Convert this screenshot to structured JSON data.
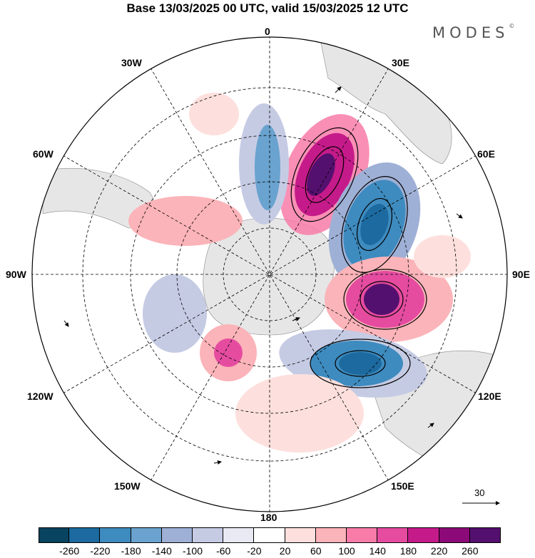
{
  "title": "Base 13/03/2025 00 UTC, valid 15/03/2025 12 UTC",
  "brand": {
    "name": "MODES",
    "mark": "©"
  },
  "map": {
    "projection": "south-polar-stereographic",
    "longitude_labels": {
      "top": "0",
      "bottom": "180",
      "left": "90W",
      "right": "90E",
      "upper_left_1": "30W",
      "upper_left_2": "60W",
      "upper_right_1": "30E",
      "upper_right_2": "60E",
      "lower_left_1": "120W",
      "lower_left_2": "150W",
      "lower_right_1": "120E",
      "lower_right_2": "150E"
    },
    "reference_vector": {
      "label": "30",
      "icon": "arrow-right-icon"
    },
    "colors": {
      "land": "#e6e6e6",
      "ocean": "#ffffff",
      "positive_ramp": [
        "#fde0dd",
        "#fbb4b9",
        "#f87ba8",
        "#e54ca0",
        "#c51b8a",
        "#8c0978",
        "#54106e"
      ],
      "negative_ramp": [
        "#e9e9f4",
        "#c6cbe4",
        "#9fb0d6",
        "#6aa3cf",
        "#3e8bbf",
        "#1c6a9f",
        "#08435f"
      ]
    }
  },
  "colorbar": {
    "colors": [
      "#08435f",
      "#1c6a9f",
      "#3e8bbf",
      "#6aa3cf",
      "#9fb0d6",
      "#c6cbe4",
      "#e9e9f4",
      "#ffffff",
      "#fde0dd",
      "#fbb4b9",
      "#f87ba8",
      "#e54ca0",
      "#c51b8a",
      "#8c0978",
      "#54106e"
    ],
    "tick_labels": [
      "-260",
      "-220",
      "-180",
      "-140",
      "-100",
      "-60",
      "-20",
      "20",
      "60",
      "100",
      "140",
      "180",
      "220",
      "260"
    ]
  }
}
